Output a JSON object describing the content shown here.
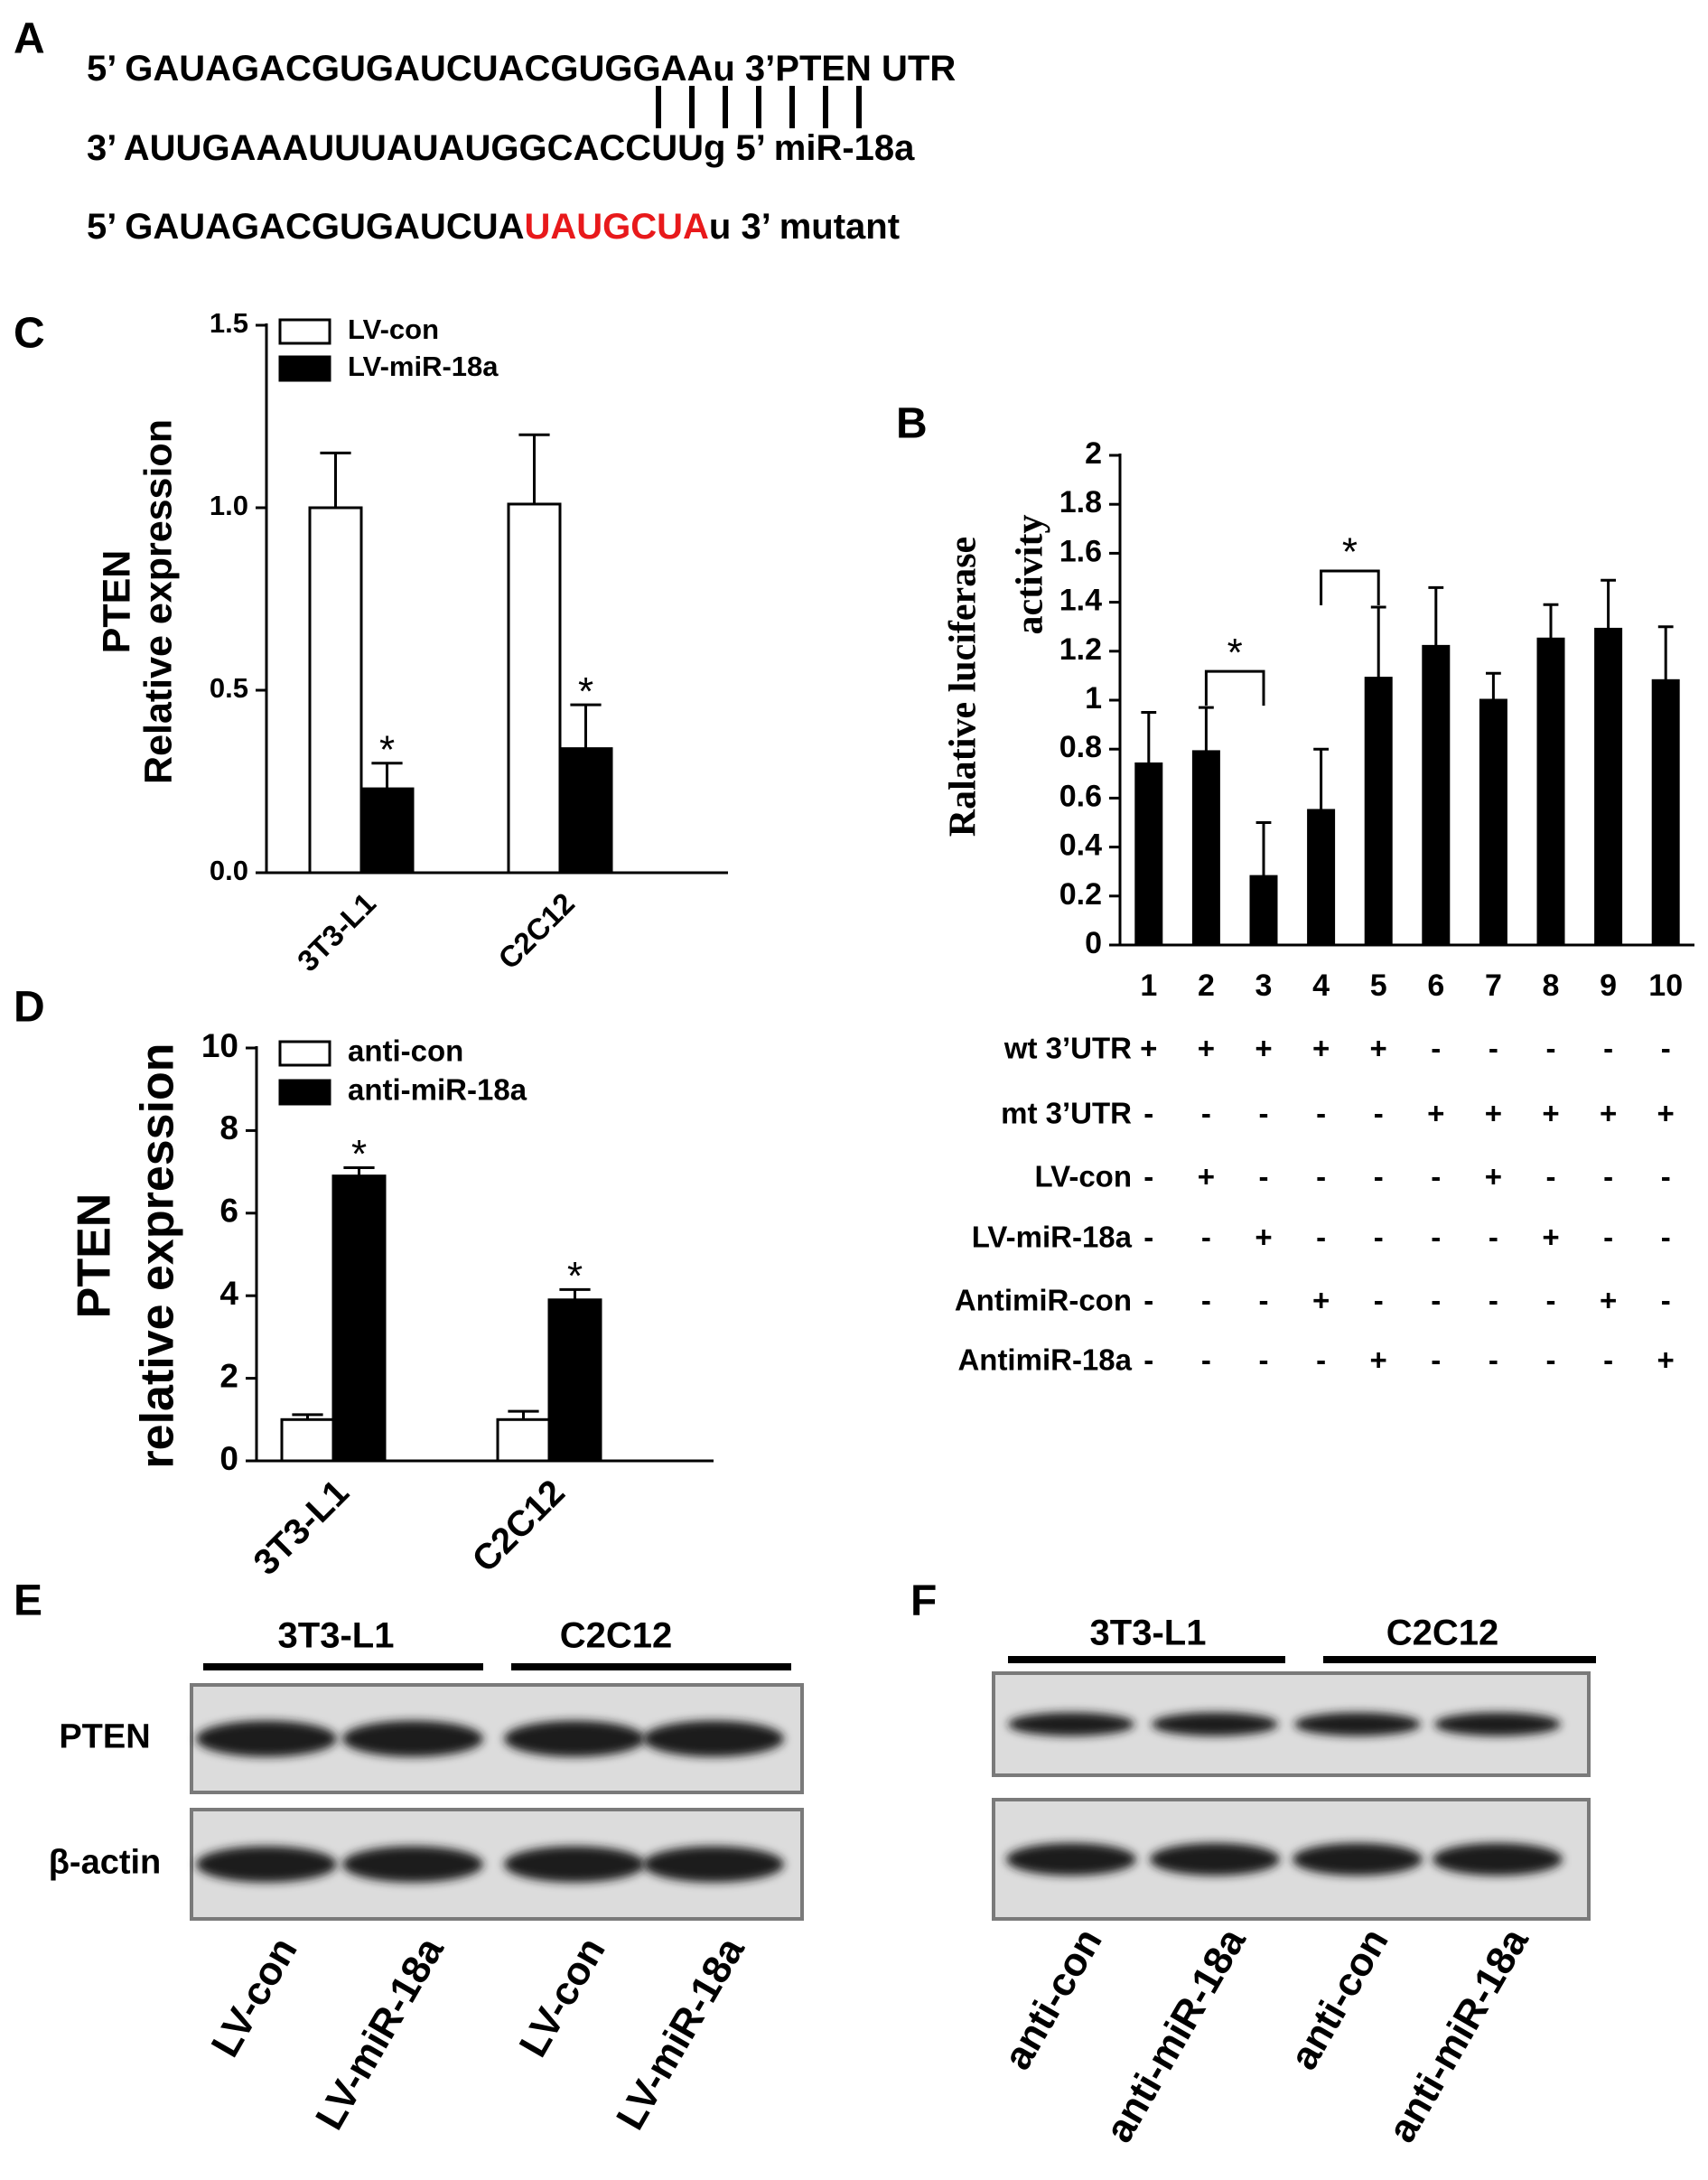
{
  "sequence_panel": {
    "label": "A",
    "lines": [
      [
        "5’ GAUAGACGUGAUCUACGUGGAAu 3’PTEN UTR"
      ],
      [
        "3’ AUUGAAAUUUAUAUGGCACCUUg 5’ miR-18a"
      ],
      [
        "5’ GAUAGACGUGAUCUA",
        "UAUGCUA",
        "u 3’ mutant"
      ]
    ],
    "highlight_color": "#e8191b"
  },
  "chart_data": [
    {
      "type": "bar",
      "label": "C",
      "ylabel": [
        "PTEN",
        "Relative expression"
      ],
      "categories": [
        "3T3-L1",
        "C2C12"
      ],
      "series": [
        {
          "name": "LV-con",
          "color": "#ffffff",
          "values": [
            1.0,
            1.01
          ],
          "errors": [
            0.15,
            0.19
          ]
        },
        {
          "name": "LV-miR-18a",
          "color": "#000000",
          "values": [
            0.23,
            0.34
          ],
          "errors": [
            0.07,
            0.12
          ],
          "markers": [
            "*",
            "*"
          ]
        }
      ],
      "ylim": [
        0,
        1.5
      ],
      "yticks": [
        {
          "value": 0,
          "label": "0.0"
        },
        0.5,
        {
          "value": 1,
          "label": "1.0"
        },
        1.5
      ]
    },
    {
      "type": "bar",
      "label": "B",
      "ylabel": [
        "Ralative luciferase",
        "activity"
      ],
      "categories": [
        "1",
        "2",
        "3",
        "4",
        "5",
        "6",
        "7",
        "8",
        "9",
        "10"
      ],
      "values": [
        0.74,
        0.79,
        0.28,
        0.55,
        1.09,
        1.22,
        1.0,
        1.25,
        1.29,
        1.08
      ],
      "errors": [
        0.21,
        0.18,
        0.22,
        0.25,
        0.29,
        0.24,
        0.11,
        0.14,
        0.2,
        0.22
      ],
      "color": "#000000",
      "ylim": [
        0,
        2
      ],
      "yticks": [
        0,
        0.2,
        0.4,
        0.6,
        0.8,
        1,
        1.2,
        1.4,
        1.6,
        1.8,
        2
      ],
      "comparisons": [
        {
          "pair": [
            "2",
            "3"
          ],
          "label": "*"
        },
        {
          "pair": [
            "4",
            "5"
          ],
          "label": "*"
        }
      ],
      "conditions": [
        {
          "name": "wt 3’UTR",
          "marks": [
            "+",
            "+",
            "+",
            "+",
            "+",
            "-",
            "-",
            "-",
            "-",
            "-"
          ]
        },
        {
          "name": "mt 3’UTR",
          "marks": [
            "-",
            "-",
            "-",
            "-",
            "-",
            "+",
            "+",
            "+",
            "+",
            "+"
          ]
        },
        {
          "name": "LV-con",
          "marks": [
            "-",
            "+",
            "-",
            "-",
            "-",
            "-",
            "+",
            "-",
            "-",
            "-"
          ]
        },
        {
          "name": "LV-miR-18a",
          "marks": [
            "-",
            "-",
            "+",
            "-",
            "-",
            "-",
            "-",
            "+",
            "-",
            "-"
          ]
        },
        {
          "name": "AntimiR-con",
          "marks": [
            "-",
            "-",
            "-",
            "+",
            "-",
            "-",
            "-",
            "-",
            "+",
            "-"
          ]
        },
        {
          "name": "AntimiR-18a",
          "marks": [
            "-",
            "-",
            "-",
            "-",
            "+",
            "-",
            "-",
            "-",
            "-",
            "+"
          ]
        }
      ]
    },
    {
      "type": "bar",
      "label": "D",
      "ylabel": [
        "PTEN",
        "relative expression"
      ],
      "categories": [
        "3T3-L1",
        "C2C12"
      ],
      "series": [
        {
          "name": "anti-con",
          "color": "#ffffff",
          "values": [
            1.0,
            1.0
          ],
          "errors": [
            0.12,
            0.2
          ]
        },
        {
          "name": "anti-miR-18a",
          "color": "#000000",
          "values": [
            6.9,
            3.9
          ],
          "errors": [
            0.2,
            0.25
          ],
          "markers": [
            "*",
            "*"
          ]
        }
      ],
      "ylim": [
        0,
        10
      ],
      "yticks": [
        0,
        2,
        4,
        6,
        8,
        10
      ]
    }
  ],
  "blots": [
    {
      "label": "E",
      "groups": [
        "3T3-L1",
        "C2C12"
      ],
      "rows": [
        "PTEN",
        "β-actin"
      ],
      "lanes": [
        "LV-con",
        "LV-miR-18a",
        "LV-con",
        "LV-miR-18a"
      ]
    },
    {
      "label": "F",
      "groups": [
        "3T3-L1",
        "C2C12"
      ],
      "lanes": [
        "anti-con",
        "anti-miR-18a",
        "anti-con",
        "anti-miR-18a"
      ]
    }
  ]
}
